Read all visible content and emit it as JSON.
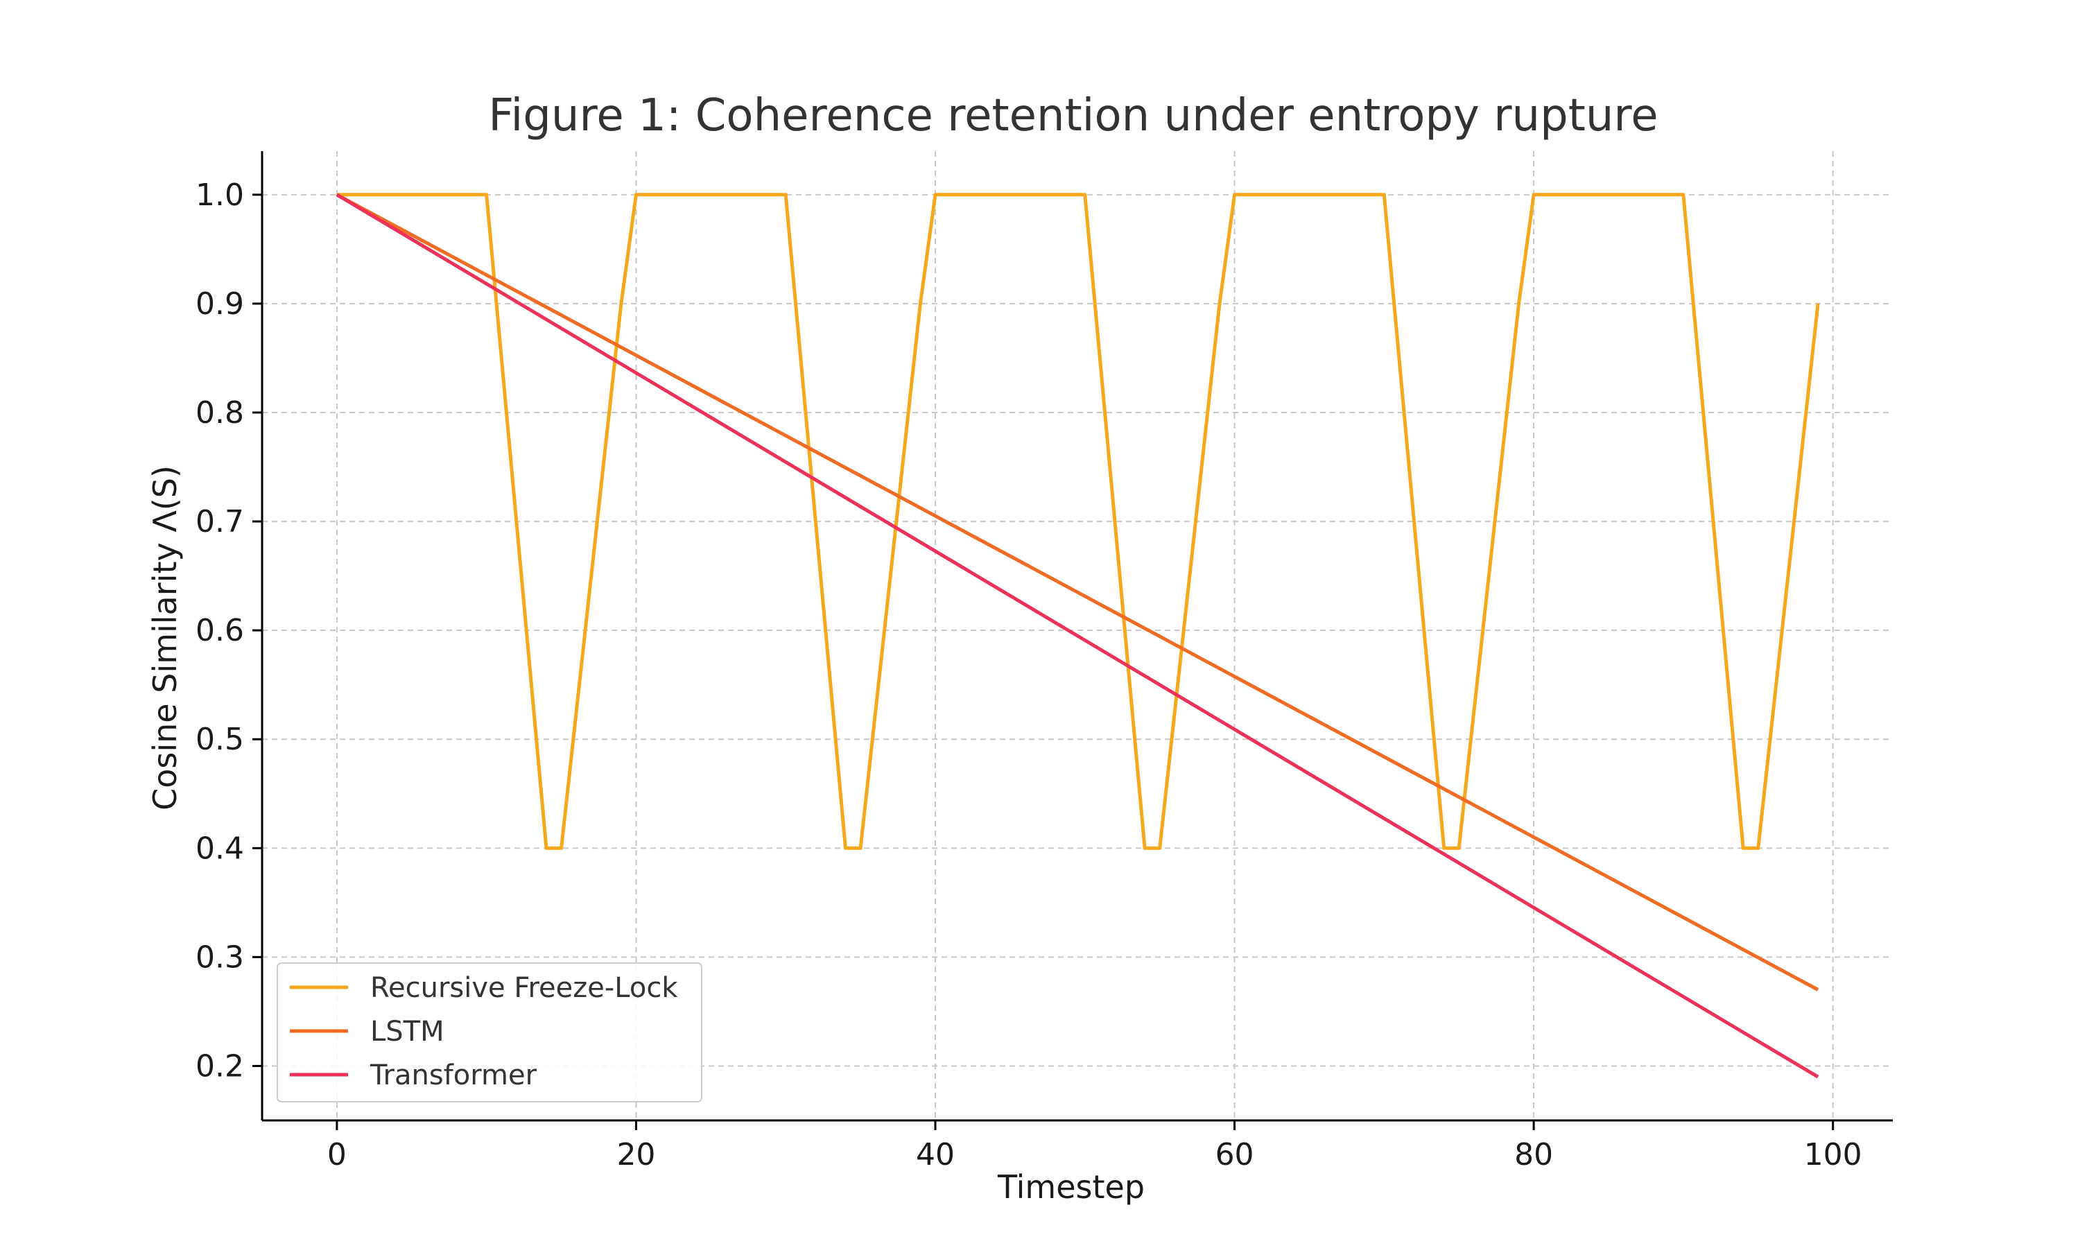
{
  "chart_data": {
    "type": "line",
    "title": "Figure 1: Coherence retention under entropy rupture",
    "xlabel": "Timestep",
    "ylabel": "Cosine Similarity Λ(S)",
    "xlim": [
      -5,
      104
    ],
    "ylim": [
      0.15,
      1.04
    ],
    "xticks": [
      0,
      20,
      40,
      60,
      80,
      100
    ],
    "yticks": [
      0.2,
      0.3,
      0.4,
      0.5,
      0.6,
      0.7,
      0.8,
      0.9,
      1.0
    ],
    "grid": true,
    "legend_position": "lower-left",
    "series": [
      {
        "name": "Recursive Freeze-Lock",
        "color": "#f5a81c",
        "x": [
          0,
          10,
          14,
          15,
          19,
          20,
          30,
          34,
          35,
          39,
          40,
          50,
          54,
          55,
          59,
          60,
          70,
          74,
          75,
          79,
          80,
          90,
          94,
          95,
          99
        ],
        "y": [
          1.0,
          1.0,
          0.4,
          0.4,
          0.9,
          1.0,
          1.0,
          0.4,
          0.4,
          0.9,
          1.0,
          1.0,
          0.4,
          0.4,
          0.9,
          1.0,
          1.0,
          0.4,
          0.4,
          0.9,
          1.0,
          1.0,
          0.4,
          0.4,
          0.9
        ]
      },
      {
        "name": "LSTM",
        "color": "#f26b22",
        "x": [
          0,
          99
        ],
        "y": [
          1.0,
          0.27
        ]
      },
      {
        "name": "Transformer",
        "color": "#ee3158",
        "x": [
          0,
          99
        ],
        "y": [
          1.0,
          0.19
        ]
      }
    ]
  }
}
